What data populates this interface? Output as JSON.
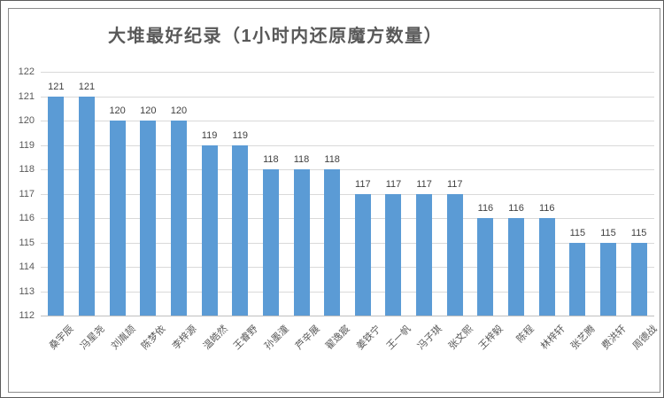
{
  "chart_data": {
    "type": "bar",
    "title": "大堆最好纪录（1小时内还原魔方数量）",
    "categories": [
      "桑宇辰",
      "冯星尧",
      "刘胤颉",
      "陈梦依",
      "李梓源",
      "温皓然",
      "王睿野",
      "孙墨潼",
      "芦辛展",
      "翟逸宸",
      "姜铁宁",
      "王一帆",
      "冯子琪",
      "张文熙",
      "王梓毅",
      "陈程",
      "林梓轩",
      "张艺腾",
      "费洪轩",
      "周德战"
    ],
    "values": [
      121,
      121,
      120,
      120,
      120,
      119,
      119,
      118,
      118,
      118,
      117,
      117,
      117,
      117,
      116,
      116,
      116,
      115,
      115,
      115
    ],
    "xlabel": "",
    "ylabel": "",
    "ylim": [
      112,
      122
    ],
    "yticks": [
      112,
      113,
      114,
      115,
      116,
      117,
      118,
      119,
      120,
      121,
      122
    ],
    "grid": true,
    "legend": "none",
    "data_labels": true,
    "x_label_rotation_deg": 45,
    "bar_color": "#5b9bd5",
    "gridline_color": "#d9d9d9",
    "axis_line_color": "#bfbfbf",
    "tick_label_color": "#595959",
    "data_label_color": "#404040",
    "title_color": "#595959"
  }
}
